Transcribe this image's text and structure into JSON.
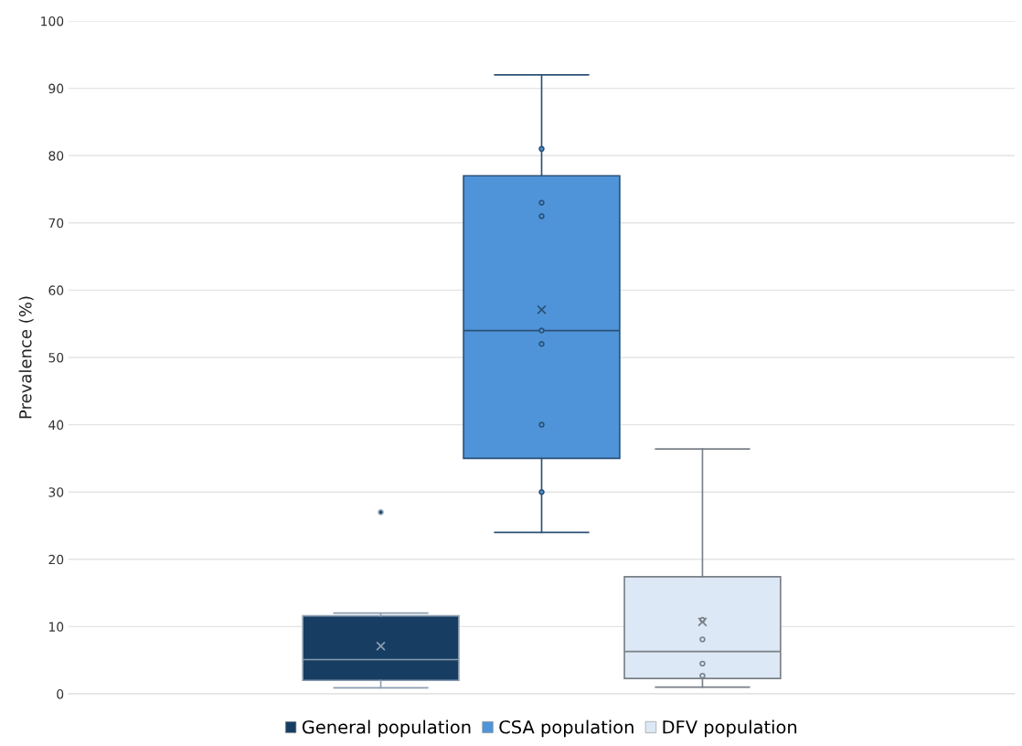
{
  "chart_data": {
    "type": "box",
    "ylabel": "Prevalence (%)",
    "categories": [
      null
    ],
    "ylim": [
      0,
      100
    ],
    "yticks": [
      0,
      10,
      20,
      30,
      40,
      50,
      60,
      70,
      80,
      90,
      100
    ],
    "grid": "y",
    "legend": "bottom",
    "series": [
      {
        "name": "General population",
        "color": "#173d63",
        "boxes": [
          {
            "low": 0.9,
            "q1": 2.0,
            "median": 5.1,
            "q3": 11.6,
            "high": 12.0,
            "mean": 7.1,
            "outliers": [
              27
            ]
          }
        ]
      },
      {
        "name": "CSA population",
        "color": "#4f94d8",
        "boxes": [
          {
            "low": 24,
            "q1": 35,
            "median": 54,
            "q3": 77,
            "high": 92,
            "mean": 57.1,
            "outliers": [
              81,
              73,
              71,
              54,
              52,
              40,
              30
            ]
          }
        ]
      },
      {
        "name": "DFV population",
        "color": "#dce8f5",
        "boxes": [
          {
            "low": 1.0,
            "q1": 2.3,
            "median": 6.3,
            "q3": 17.4,
            "high": 36.4,
            "mean": 10.7,
            "outliers": [
              11.0,
              8.1,
              4.5,
              2.7
            ]
          }
        ]
      }
    ]
  }
}
